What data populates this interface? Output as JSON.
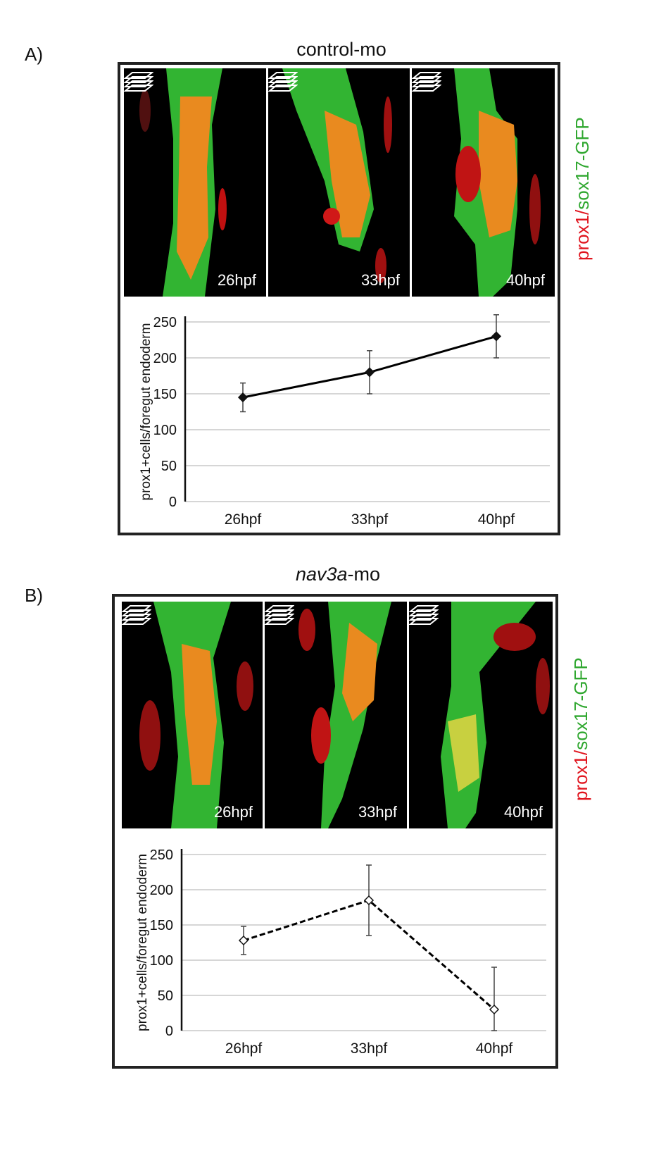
{
  "panels": [
    {
      "letter": "A)",
      "title_prefix": "",
      "title_italic": "",
      "title_text": "control-mo",
      "legend": {
        "red": "prox1",
        "slash": "/",
        "green": "sox17-GFP"
      },
      "images": [
        {
          "label": "26hpf",
          "icon": "z-stack-icon"
        },
        {
          "label": "33hpf",
          "icon": "z-stack-icon"
        },
        {
          "label": "40hpf",
          "icon": "z-stack-icon"
        }
      ]
    },
    {
      "letter": "B)",
      "title_prefix": "",
      "title_italic": "nav3a",
      "title_text": "-mo",
      "legend": {
        "red": "prox1",
        "slash": "/",
        "green": "sox17-GFP"
      },
      "images": [
        {
          "label": "26hpf",
          "icon": "z-stack-icon"
        },
        {
          "label": "33hpf",
          "icon": "z-stack-icon"
        },
        {
          "label": "40hpf",
          "icon": "z-stack-icon"
        }
      ]
    }
  ],
  "chart_data": [
    {
      "type": "line",
      "categories": [
        "26hpf",
        "33hpf",
        "40hpf"
      ],
      "series": [
        {
          "values": [
            145,
            180,
            230
          ],
          "errors": [
            20,
            30,
            30
          ],
          "line_style": "solid",
          "marker": "filled-diamond",
          "color": "#000000"
        }
      ],
      "ylabel": "prox1+cells/foregut endoderm",
      "ylim": [
        0,
        250
      ],
      "yticks": [
        0,
        50,
        100,
        150,
        200,
        250
      ],
      "grid": true
    },
    {
      "type": "line",
      "categories": [
        "26hpf",
        "33hpf",
        "40hpf"
      ],
      "series": [
        {
          "values": [
            128,
            185,
            30
          ],
          "errors": [
            20,
            50,
            60
          ],
          "line_style": "dashed",
          "marker": "open-diamond",
          "color": "#000000"
        }
      ],
      "ylabel": "prox1+cells/foregut endoderm",
      "ylim": [
        0,
        250
      ],
      "yticks": [
        0,
        50,
        100,
        150,
        200,
        250
      ],
      "grid": true
    }
  ]
}
